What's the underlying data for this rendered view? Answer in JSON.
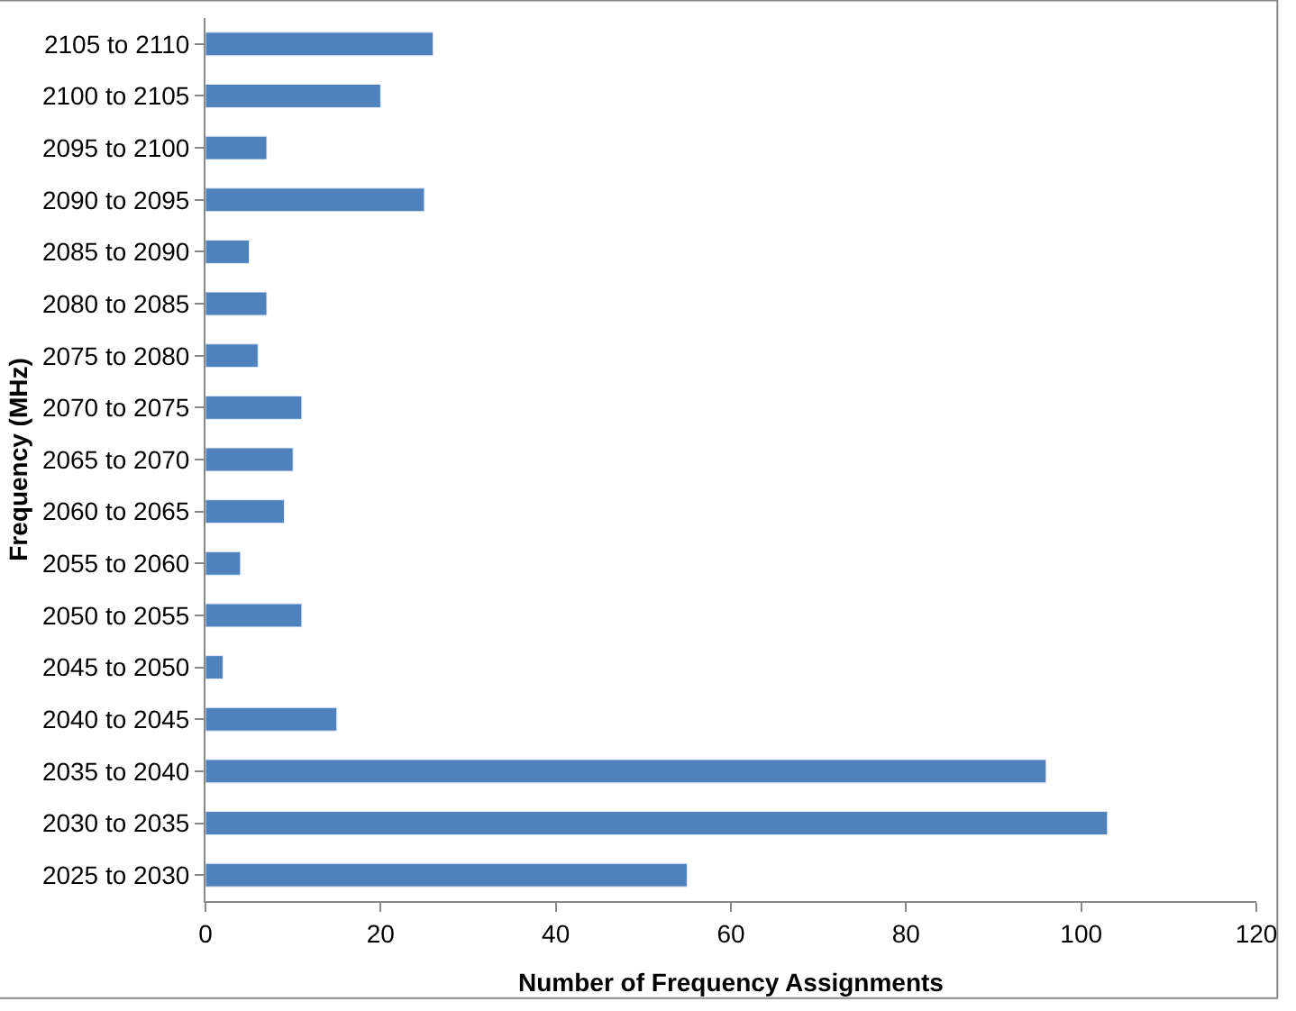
{
  "chart_data": {
    "type": "bar",
    "orientation": "horizontal",
    "xlabel": "Number of Frequency Assignments",
    "ylabel": "Frequency (MHz)",
    "categories": [
      "2105 to 2110",
      "2100 to 2105",
      "2095 to 2100",
      "2090 to 2095",
      "2085 to 2090",
      "2080 to 2085",
      "2075 to 2080",
      "2070 to 2075",
      "2065 to 2070",
      "2060 to 2065",
      "2055 to 2060",
      "2050 to 2055",
      "2045 to 2050",
      "2040 to 2045",
      "2035 to 2040",
      "2030 to 2035",
      "2025 to 2030"
    ],
    "values": [
      26,
      20,
      7,
      25,
      5,
      7,
      6,
      11,
      10,
      9,
      4,
      11,
      2,
      15,
      96,
      103,
      55
    ],
    "color": "#4f81bd",
    "xlim": [
      0,
      120
    ],
    "xticks": [
      0,
      20,
      40,
      60,
      80,
      100,
      120
    ],
    "legend": false
  }
}
